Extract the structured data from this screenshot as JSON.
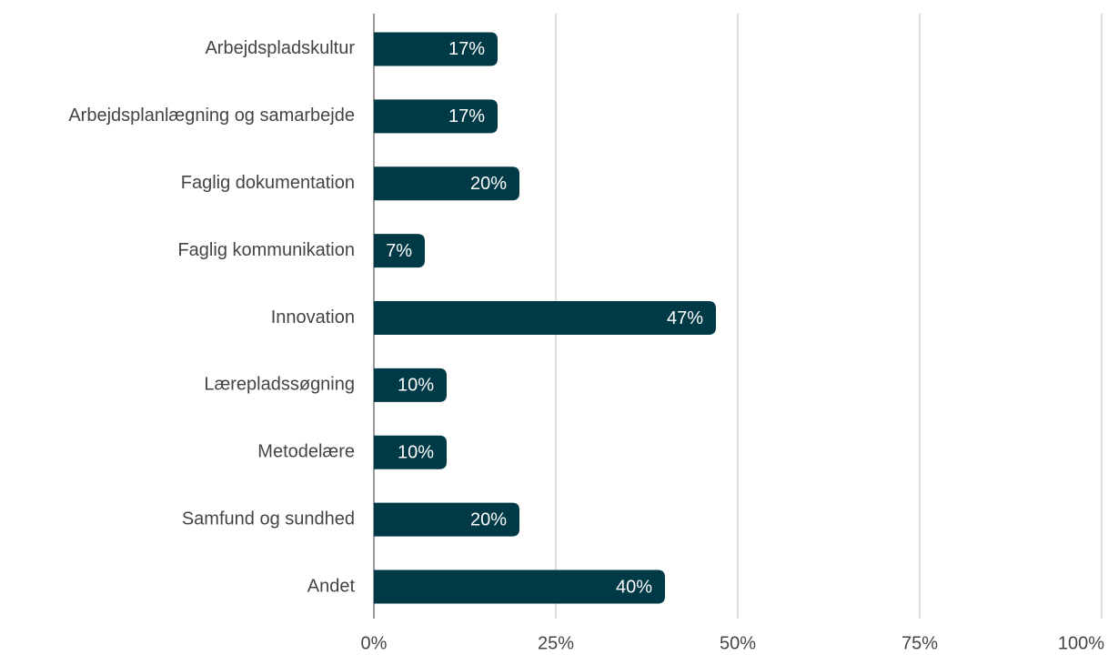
{
  "chart_data": {
    "type": "bar",
    "orientation": "horizontal",
    "categories": [
      "Arbejdspladskultur",
      "Arbejdsplanlægning og samarbejde",
      "Faglig dokumentation",
      "Faglig kommunikation",
      "Innovation",
      "Lærepladssøgning",
      "Metodelære",
      "Samfund og sundhed",
      "Andet"
    ],
    "values": [
      17,
      17,
      20,
      7,
      47,
      10,
      10,
      20,
      40
    ],
    "value_labels": [
      "17%",
      "17%",
      "20%",
      "7%",
      "47%",
      "10%",
      "10%",
      "20%",
      "40%"
    ],
    "color": "#003a46",
    "xlim": [
      0,
      100
    ],
    "xticks": [
      {
        "value": 0,
        "label": "0%"
      },
      {
        "value": 25,
        "label": "25%"
      },
      {
        "value": 50,
        "label": "50%"
      },
      {
        "value": 75,
        "label": "75%"
      },
      {
        "value": 100,
        "label": "100%"
      }
    ],
    "grid": true
  }
}
